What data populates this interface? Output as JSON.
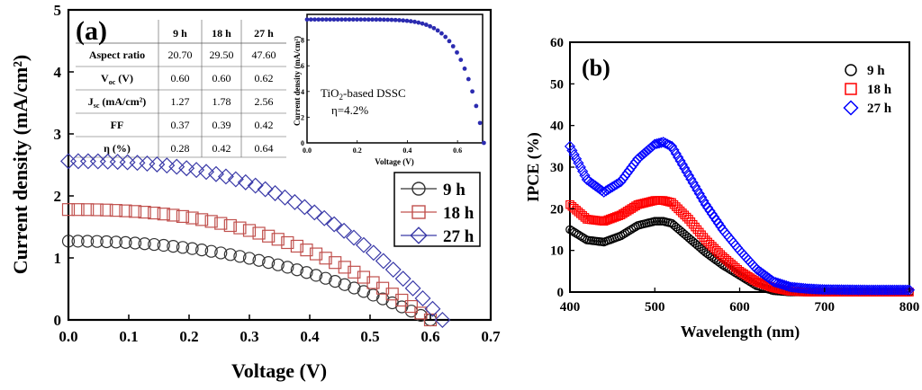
{
  "chart_data": [
    {
      "panel": "(a)",
      "type": "scatter",
      "xlabel": "Voltage (V)",
      "ylabel": "Current density (mA/cm²)",
      "xlim": [
        0.0,
        0.7
      ],
      "ylim": [
        0,
        5
      ],
      "xticks": [
        "0.0",
        "0.1",
        "0.2",
        "0.3",
        "0.4",
        "0.5",
        "0.6",
        "0.7"
      ],
      "yticks": [
        "0",
        "1",
        "2",
        "3",
        "4",
        "5"
      ],
      "legend": {
        "placement": "right",
        "entries": [
          "9 h",
          "18 h",
          "27 h"
        ]
      },
      "series": [
        {
          "name": "9 h",
          "marker": "circle",
          "color": "#333333",
          "jsc": 1.27,
          "voc": 0.6,
          "ff": 0.37
        },
        {
          "name": "18 h",
          "marker": "square",
          "color": "#c0504d",
          "jsc": 1.78,
          "voc": 0.6,
          "ff": 0.39
        },
        {
          "name": "27 h",
          "marker": "diamond",
          "color": "#3a3aa8",
          "jsc": 2.56,
          "voc": 0.62,
          "ff": 0.42
        }
      ],
      "table": {
        "headers": [
          "",
          "9 h",
          "18 h",
          "27 h"
        ],
        "rows": [
          {
            "label": "Aspect ratio",
            "values": [
              "20.70",
              "29.50",
              "47.60"
            ]
          },
          {
            "label": "V",
            "sub": "oc",
            "unit": " (V)",
            "values": [
              "0.60",
              "0.60",
              "0.62"
            ]
          },
          {
            "label": "J",
            "sub": "sc",
            "unit": " (mA/cm²)",
            "values": [
              "1.27",
              "1.78",
              "2.56"
            ]
          },
          {
            "label": "FF",
            "values": [
              "0.37",
              "0.39",
              "0.42"
            ]
          },
          {
            "label": "η (%)",
            "values": [
              "0.28",
              "0.42",
              "0.64"
            ]
          }
        ]
      },
      "inset": {
        "type": "scatter",
        "xlabel": "Voltage (V)",
        "ylabel": "Current density (mA/cm²)",
        "xlim": [
          0.0,
          0.7
        ],
        "ylim": [
          0,
          10
        ],
        "xticks": [
          "0.0",
          "0.2",
          "0.4",
          "0.6"
        ],
        "yticks": [
          "0",
          "2",
          "4",
          "6",
          "8"
        ],
        "annotation_line1_pre": "TiO",
        "annotation_line1_sub": "2",
        "annotation_line1_post": "-based DSSC",
        "annotation_line2": "η=4.2%",
        "color": "#2b2bb0",
        "jsc": 9.6,
        "voc": 0.705,
        "ff": 0.62
      }
    },
    {
      "panel": "(b)",
      "type": "scatter",
      "xlabel": "Wavelength (nm)",
      "ylabel": "IPCE (%)",
      "xlim": [
        400,
        800
      ],
      "ylim": [
        0,
        60
      ],
      "xticks": [
        "400",
        "500",
        "600",
        "700",
        "800"
      ],
      "yticks": [
        "0",
        "10",
        "20",
        "30",
        "40",
        "50",
        "60"
      ],
      "legend": {
        "placement": "top-right",
        "entries": [
          "9 h",
          "18 h",
          "27 h"
        ]
      },
      "series": [
        {
          "name": "9 h",
          "marker": "circle",
          "color": "#000000",
          "x": [
            400,
            420,
            440,
            460,
            480,
            500,
            510,
            520,
            540,
            560,
            580,
            600,
            620,
            640,
            660,
            680,
            700,
            750,
            800
          ],
          "y": [
            15,
            12.5,
            12,
            13.5,
            16,
            17,
            17,
            16.5,
            13,
            9.5,
            6.5,
            4,
            1.5,
            0.3,
            0,
            0,
            0,
            0,
            0
          ]
        },
        {
          "name": "18 h",
          "marker": "square",
          "color": "#ff0000",
          "x": [
            400,
            420,
            440,
            460,
            480,
            500,
            510,
            520,
            540,
            560,
            580,
            600,
            620,
            640,
            660,
            680,
            700,
            750,
            800
          ],
          "y": [
            21,
            17.5,
            17,
            18.5,
            21,
            22,
            22,
            21.5,
            17.5,
            12.5,
            8.5,
            5,
            2.5,
            1,
            0.2,
            0,
            0,
            0,
            0
          ]
        },
        {
          "name": "27 h",
          "marker": "diamond",
          "color": "#0000ff",
          "x": [
            400,
            420,
            440,
            460,
            480,
            500,
            510,
            520,
            540,
            560,
            580,
            600,
            620,
            640,
            660,
            680,
            700,
            750,
            800
          ],
          "y": [
            35,
            27,
            24,
            26.5,
            32,
            35.5,
            36,
            35,
            28,
            21,
            15,
            10,
            5.5,
            2.5,
            1.2,
            0.8,
            0.6,
            0.5,
            0.5
          ]
        }
      ]
    }
  ]
}
